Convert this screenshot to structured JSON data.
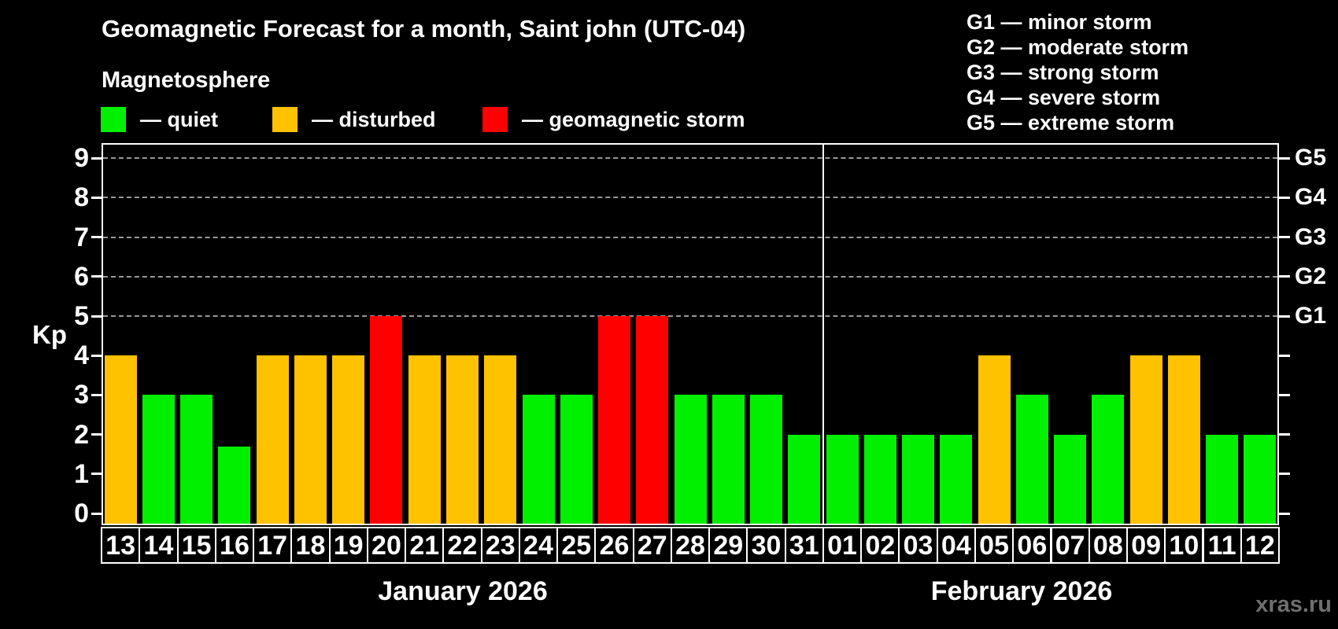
{
  "header": {
    "title": "Geomagnetic Forecast for a month, Saint john (UTC-04)",
    "subtitle": "Magnetosphere"
  },
  "legend": {
    "items": [
      {
        "name": "quiet",
        "label": "— quiet",
        "color": "#00f000"
      },
      {
        "name": "disturbed",
        "label": "— disturbed",
        "color": "#ffc200"
      },
      {
        "name": "storm",
        "label": "— geomagnetic storm",
        "color": "#ff0000"
      }
    ]
  },
  "storm_scale_legend": {
    "lines": [
      "G1 — minor storm",
      "G2 — moderate storm",
      "G3 — strong storm",
      "G4 — severe storm",
      "G5 — extreme storm"
    ]
  },
  "watermark": "xras.ru",
  "chart_data": {
    "type": "bar",
    "ylabel": "Kp",
    "ylim": [
      0,
      9
    ],
    "yticks": [
      0,
      1,
      2,
      3,
      4,
      5,
      6,
      7,
      8,
      9
    ],
    "grid_dashed_at": [
      5,
      6,
      7,
      8,
      9
    ],
    "right_axis": [
      {
        "kp": 5,
        "label": "G1"
      },
      {
        "kp": 6,
        "label": "G2"
      },
      {
        "kp": 7,
        "label": "G3"
      },
      {
        "kp": 8,
        "label": "G4"
      },
      {
        "kp": 9,
        "label": "G5"
      }
    ],
    "level_colors": {
      "quiet": "#00f000",
      "disturbed": "#ffc200",
      "storm": "#ff0000"
    },
    "months": [
      {
        "label": "January 2026",
        "days": [
          {
            "day": "13",
            "kp": 4,
            "level": "disturbed"
          },
          {
            "day": "14",
            "kp": 3,
            "level": "quiet"
          },
          {
            "day": "15",
            "kp": 3,
            "level": "quiet"
          },
          {
            "day": "16",
            "kp": 1.7,
            "level": "quiet"
          },
          {
            "day": "17",
            "kp": 4,
            "level": "disturbed"
          },
          {
            "day": "18",
            "kp": 4,
            "level": "disturbed"
          },
          {
            "day": "19",
            "kp": 4,
            "level": "disturbed"
          },
          {
            "day": "20",
            "kp": 5,
            "level": "storm"
          },
          {
            "day": "21",
            "kp": 4,
            "level": "disturbed"
          },
          {
            "day": "22",
            "kp": 4,
            "level": "disturbed"
          },
          {
            "day": "23",
            "kp": 4,
            "level": "disturbed"
          },
          {
            "day": "24",
            "kp": 3,
            "level": "quiet"
          },
          {
            "day": "25",
            "kp": 3,
            "level": "quiet"
          },
          {
            "day": "26",
            "kp": 5,
            "level": "storm"
          },
          {
            "day": "27",
            "kp": 5,
            "level": "storm"
          },
          {
            "day": "28",
            "kp": 3,
            "level": "quiet"
          },
          {
            "day": "29",
            "kp": 3,
            "level": "quiet"
          },
          {
            "day": "30",
            "kp": 3,
            "level": "quiet"
          },
          {
            "day": "31",
            "kp": 2,
            "level": "quiet"
          }
        ]
      },
      {
        "label": "February 2026",
        "days": [
          {
            "day": "01",
            "kp": 2,
            "level": "quiet"
          },
          {
            "day": "02",
            "kp": 2,
            "level": "quiet"
          },
          {
            "day": "03",
            "kp": 2,
            "level": "quiet"
          },
          {
            "day": "04",
            "kp": 2,
            "level": "quiet"
          },
          {
            "day": "05",
            "kp": 4,
            "level": "disturbed"
          },
          {
            "day": "06",
            "kp": 3,
            "level": "quiet"
          },
          {
            "day": "07",
            "kp": 2,
            "level": "quiet"
          },
          {
            "day": "08",
            "kp": 3,
            "level": "quiet"
          },
          {
            "day": "09",
            "kp": 4,
            "level": "disturbed"
          },
          {
            "day": "10",
            "kp": 4,
            "level": "disturbed"
          },
          {
            "day": "11",
            "kp": 2,
            "level": "quiet"
          },
          {
            "day": "12",
            "kp": 2,
            "level": "quiet"
          }
        ]
      }
    ]
  }
}
